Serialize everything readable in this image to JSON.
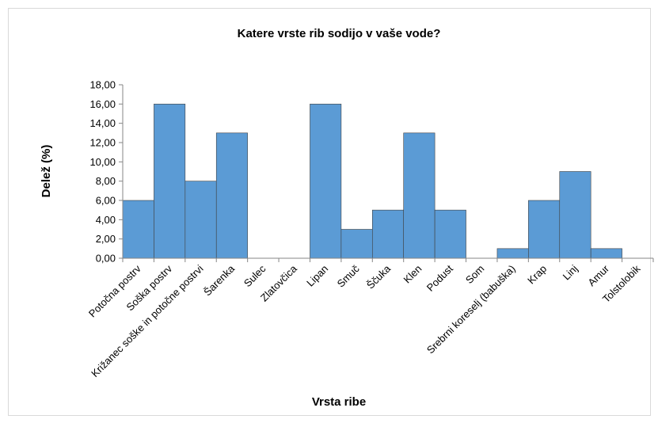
{
  "chart_data": {
    "type": "bar",
    "title": "Katere vrste rib sodijo v vaše vode?",
    "xlabel": "Vrsta ribe",
    "ylabel": "Delež (%)",
    "ylim": [
      0,
      18
    ],
    "yticks": [
      "0,00",
      "2,00",
      "4,00",
      "6,00",
      "8,00",
      "10,00",
      "12,00",
      "14,00",
      "16,00",
      "18,00"
    ],
    "grid": false,
    "bar_color": "#5b9bd5",
    "categories": [
      "Potočna postrv",
      "Soška postrv",
      "Križanec soške in potočne postrvi",
      "Šarenka",
      "Sulec",
      "Zlatovčica",
      "Lipan",
      "Smuč",
      "Ščuka",
      "Klen",
      "Podust",
      "Som",
      "Srebrni koreselj (babuška)",
      "Krap",
      "Linj",
      "Amur",
      "Tolstolobik"
    ],
    "values": [
      6,
      16,
      8,
      13,
      0,
      0,
      16,
      3,
      5,
      13,
      5,
      0,
      1,
      6,
      9,
      1,
      0
    ]
  }
}
